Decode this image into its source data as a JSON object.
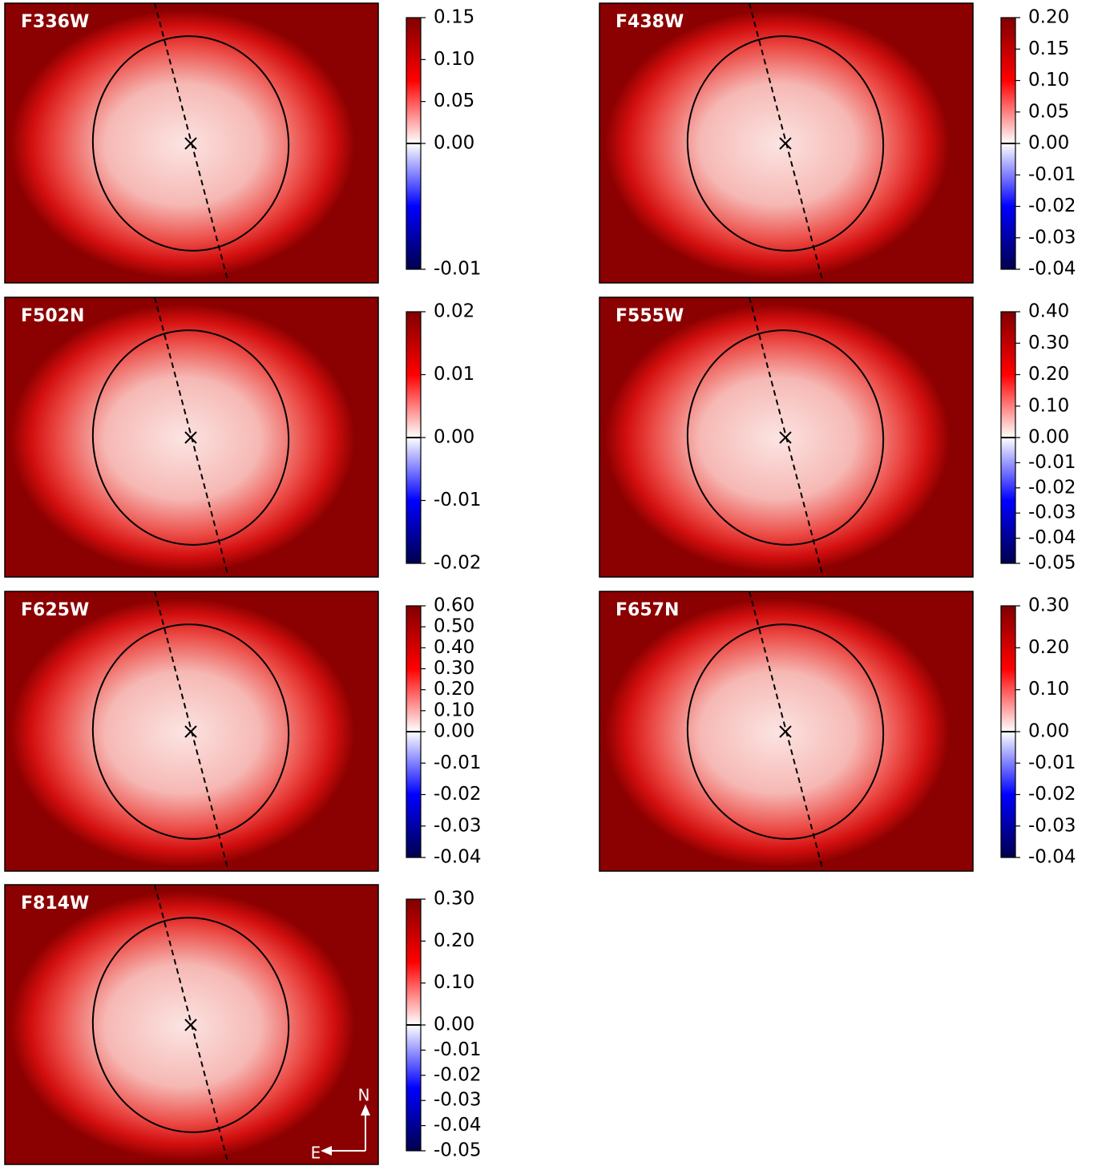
{
  "chart_data": [
    {
      "type": "heatmap",
      "title": "F336W",
      "colorbar": {
        "clim": [
          -0.01,
          0.15
        ],
        "vcenter": 0,
        "ticks": [
          0.15,
          {
            "value": 0.1,
            "label": "0.10"
          },
          0.05,
          {
            "value": 0,
            "label": "0.00"
          },
          -0.01
        ]
      }
    },
    {
      "type": "heatmap",
      "title": "F438W",
      "colorbar": {
        "clim": [
          -0.04,
          0.2
        ],
        "vcenter": 0,
        "ticks": [
          {
            "value": 0.2,
            "label": "0.20"
          },
          0.15,
          {
            "value": 0.1,
            "label": "0.10"
          },
          0.05,
          {
            "value": 0,
            "label": "0.00"
          },
          -0.01,
          -0.02,
          -0.03,
          -0.04
        ]
      }
    },
    {
      "type": "heatmap",
      "title": "F502N",
      "colorbar": {
        "clim": [
          -0.02,
          0.02
        ],
        "vcenter": 0,
        "ticks": [
          0.02,
          0.01,
          {
            "value": 0,
            "label": "0.00"
          },
          -0.01,
          -0.02
        ]
      }
    },
    {
      "type": "heatmap",
      "title": "F555W",
      "colorbar": {
        "clim": [
          -0.05,
          0.4
        ],
        "vcenter": 0,
        "ticks": [
          {
            "value": 0.4,
            "label": "0.40"
          },
          {
            "value": 0.3,
            "label": "0.30"
          },
          {
            "value": 0.2,
            "label": "0.20"
          },
          {
            "value": 0.1,
            "label": "0.10"
          },
          {
            "value": 0,
            "label": "0.00"
          },
          -0.01,
          -0.02,
          -0.03,
          -0.04,
          -0.05
        ]
      }
    },
    {
      "type": "heatmap",
      "title": "F625W",
      "colorbar": {
        "clim": [
          -0.04,
          0.6
        ],
        "vcenter": 0,
        "ticks": [
          {
            "value": 0.6,
            "label": "0.60"
          },
          {
            "value": 0.5,
            "label": "0.50"
          },
          {
            "value": 0.4,
            "label": "0.40"
          },
          {
            "value": 0.3,
            "label": "0.30"
          },
          {
            "value": 0.2,
            "label": "0.20"
          },
          {
            "value": 0.1,
            "label": "0.10"
          },
          {
            "value": 0,
            "label": "0.00"
          },
          -0.01,
          -0.02,
          -0.03,
          -0.04
        ]
      }
    },
    {
      "type": "heatmap",
      "title": "F657N",
      "colorbar": {
        "clim": [
          -0.04,
          0.3
        ],
        "vcenter": 0,
        "ticks": [
          {
            "value": 0.3,
            "label": "0.30"
          },
          {
            "value": 0.2,
            "label": "0.20"
          },
          {
            "value": 0.1,
            "label": "0.10"
          },
          {
            "value": 0,
            "label": "0.00"
          },
          -0.01,
          -0.02,
          -0.03,
          -0.04
        ]
      }
    },
    {
      "type": "heatmap",
      "title": "F814W",
      "colorbar": {
        "clim": [
          -0.05,
          0.3
        ],
        "vcenter": 0,
        "ticks": [
          {
            "value": 0.3,
            "label": "0.30"
          },
          {
            "value": 0.2,
            "label": "0.20"
          },
          {
            "value": 0.1,
            "label": "0.10"
          },
          {
            "value": 0,
            "label": "0.00"
          },
          -0.01,
          -0.02,
          -0.03,
          -0.04,
          -0.05
        ]
      },
      "compass": {
        "north": "N",
        "east": "E"
      }
    }
  ]
}
